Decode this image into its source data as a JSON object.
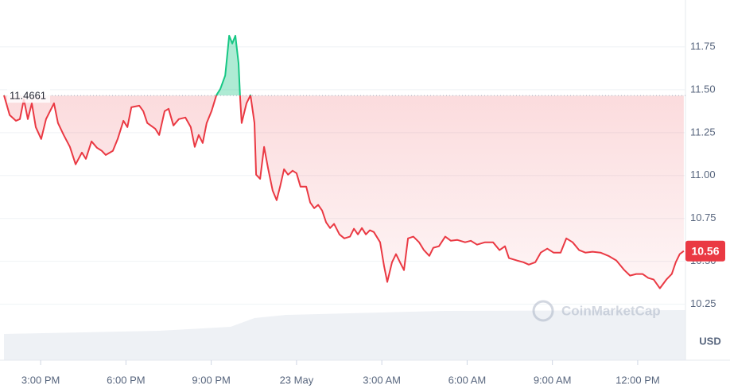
{
  "chart_data": {
    "type": "line",
    "x": [
      13.71,
      13.91,
      14.13,
      14.27,
      14.41,
      14.55,
      14.69,
      14.83,
      15.02,
      15.19,
      15.33,
      15.47,
      15.61,
      15.81,
      16.03,
      16.23,
      16.45,
      16.59,
      16.79,
      16.98,
      17.15,
      17.29,
      17.54,
      17.71,
      17.91,
      18.05,
      18.19,
      18.47,
      18.61,
      18.75,
      19.03,
      19.17,
      19.36,
      19.5,
      19.67,
      19.86,
      20.09,
      20.28,
      20.42,
      20.56,
      20.7,
      20.84,
      21.01,
      21.18,
      21.32,
      21.49,
      21.63,
      21.74,
      21.85,
      21.96,
      22.02,
      22.07,
      22.24,
      22.38,
      22.52,
      22.58,
      22.72,
      22.86,
      23.0,
      23.16,
      23.3,
      23.42,
      23.56,
      23.7,
      23.86,
      24.0,
      24.14,
      24.34,
      24.48,
      24.62,
      24.76,
      24.9,
      25.04,
      25.18,
      25.32,
      25.51,
      25.68,
      25.88,
      26.02,
      26.16,
      26.3,
      26.44,
      26.58,
      26.72,
      26.94,
      27.08,
      27.19,
      27.36,
      27.5,
      27.64,
      27.78,
      27.92,
      28.11,
      28.31,
      28.48,
      28.67,
      28.81,
      29.01,
      29.23,
      29.43,
      29.65,
      29.93,
      30.13,
      30.35,
      30.63,
      30.91,
      31.14,
      31.33,
      31.47,
      31.75,
      31.98,
      32.17,
      32.4,
      32.59,
      32.82,
      33.04,
      33.29,
      33.49,
      33.71,
      33.94,
      34.16,
      34.41,
      34.69,
      34.97,
      35.25,
      35.53,
      35.73,
      35.95,
      36.17,
      36.37,
      36.56,
      36.78,
      37.01,
      37.2,
      37.34,
      37.48,
      37.62
    ],
    "values": [
      11.468,
      11.352,
      11.319,
      11.329,
      11.444,
      11.329,
      11.421,
      11.282,
      11.213,
      11.329,
      11.375,
      11.421,
      11.306,
      11.236,
      11.167,
      11.065,
      11.134,
      11.097,
      11.199,
      11.162,
      11.144,
      11.12,
      11.144,
      11.213,
      11.319,
      11.282,
      11.398,
      11.407,
      11.375,
      11.306,
      11.273,
      11.236,
      11.375,
      11.389,
      11.292,
      11.329,
      11.338,
      11.282,
      11.167,
      11.236,
      11.19,
      11.306,
      11.375,
      11.468,
      11.505,
      11.583,
      11.815,
      11.769,
      11.815,
      11.653,
      11.444,
      11.306,
      11.421,
      11.468,
      11.306,
      11.005,
      10.981,
      11.167,
      11.042,
      10.912,
      10.856,
      10.935,
      11.037,
      11.005,
      11.028,
      11.014,
      10.935,
      10.935,
      10.843,
      10.81,
      10.829,
      10.796,
      10.727,
      10.694,
      10.718,
      10.657,
      10.634,
      10.644,
      10.69,
      10.657,
      10.694,
      10.657,
      10.681,
      10.671,
      10.611,
      10.472,
      10.38,
      10.495,
      10.542,
      10.495,
      10.449,
      10.634,
      10.644,
      10.611,
      10.565,
      10.532,
      10.579,
      10.588,
      10.644,
      10.62,
      10.625,
      10.611,
      10.62,
      10.597,
      10.611,
      10.611,
      10.565,
      10.588,
      10.519,
      10.505,
      10.495,
      10.481,
      10.495,
      10.551,
      10.574,
      10.551,
      10.551,
      10.634,
      10.611,
      10.565,
      10.551,
      10.556,
      10.551,
      10.532,
      10.505,
      10.449,
      10.417,
      10.426,
      10.426,
      10.403,
      10.394,
      10.343,
      10.394,
      10.426,
      10.495,
      10.542,
      10.56
    ],
    "up_color": "#16c784",
    "down_color": "#ea3943",
    "reference_value": 11.4661,
    "current_price": 10.56,
    "xlim": [
      13.71,
      37.68
    ],
    "xticks": [
      {
        "value": 15,
        "label": "3:00 PM"
      },
      {
        "value": 18,
        "label": "6:00 PM"
      },
      {
        "value": 21,
        "label": "9:00 PM"
      },
      {
        "value": 24,
        "label": "23 May"
      },
      {
        "value": 27,
        "label": "3:00 AM"
      },
      {
        "value": 30,
        "label": "6:00 AM"
      },
      {
        "value": 33,
        "label": "9:00 AM"
      },
      {
        "value": 36,
        "label": "12:00 PM"
      }
    ],
    "ylim": [
      10.1,
      12.023
    ],
    "yticks": [
      10.25,
      {
        "value": 10.5,
        "label": "10.50"
      },
      10.75,
      {
        "value": 11,
        "label": "11.00"
      },
      11.25,
      {
        "value": 11.5,
        "label": "11.50"
      },
      11.75
    ],
    "y_unit": "USD",
    "watermark": "CoinMarketCap",
    "grid": true
  }
}
